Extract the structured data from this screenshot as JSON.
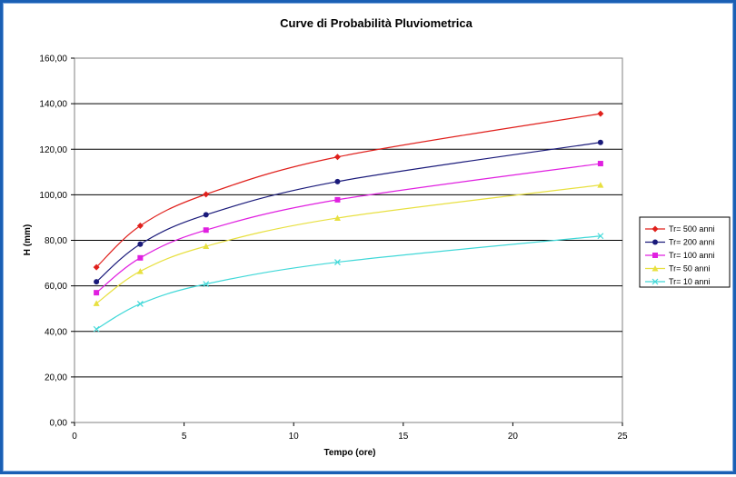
{
  "chart_data": {
    "type": "line",
    "title": "Curve di Probabilità Pluviometrica",
    "xlabel": "Tempo (ore)",
    "ylabel": "H (mm)",
    "xlim": [
      0,
      25
    ],
    "ylim": [
      0,
      160
    ],
    "x_ticks": [
      "0",
      "5",
      "10",
      "15",
      "20",
      "25"
    ],
    "y_ticks": [
      "0,00",
      "20,00",
      "40,00",
      "60,00",
      "80,00",
      "100,00",
      "120,00",
      "140,00",
      "160,00"
    ],
    "grid": "horizontal",
    "legend_position": "right",
    "x": [
      1,
      3,
      6,
      12,
      24
    ],
    "series": [
      {
        "name": "Tr= 500 anni",
        "color": "#e0201c",
        "marker": "diamond",
        "values": [
          68.2,
          86.4,
          100.2,
          116.6,
          135.6
        ]
      },
      {
        "name": "Tr= 200 anni",
        "color": "#1a1a7a",
        "marker": "circle",
        "values": [
          61.8,
          78.3,
          91.2,
          105.8,
          123.0
        ]
      },
      {
        "name": "Tr= 100 anni",
        "color": "#e020e0",
        "marker": "square",
        "values": [
          57.0,
          72.3,
          84.5,
          97.8,
          113.7
        ]
      },
      {
        "name": "Tr= 50 anni",
        "color": "#e8e040",
        "marker": "triangle",
        "values": [
          52.3,
          66.4,
          77.4,
          89.8,
          104.3
        ]
      },
      {
        "name": "Tr= 10 anni",
        "color": "#40d8d8",
        "marker": "x",
        "values": [
          41.0,
          52.1,
          60.8,
          70.4,
          81.9
        ]
      }
    ]
  }
}
